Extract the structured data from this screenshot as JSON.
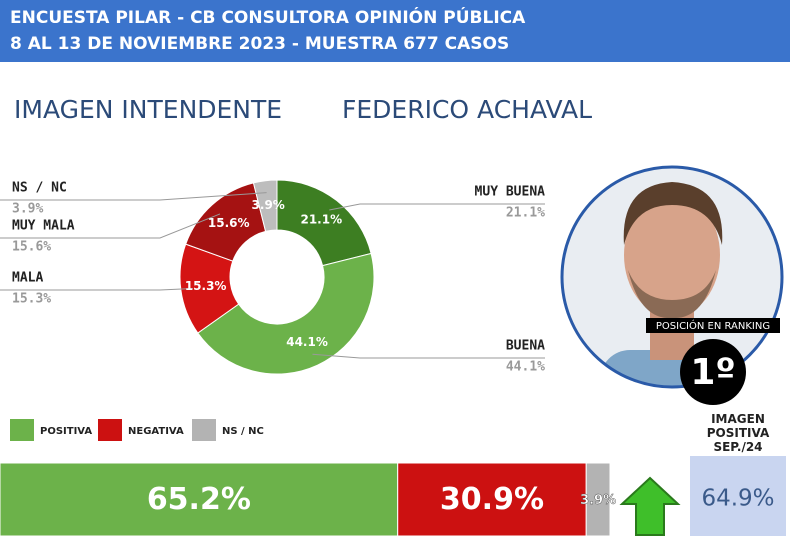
{
  "header": {
    "line1": "ENCUESTA PILAR - CB CONSULTORA OPINIÓN PÚBLICA",
    "line2": "8 AL 13 DE NOVIEMBRE 2023 - MUESTRA 677 CASOS"
  },
  "title": {
    "left": "IMAGEN INTENDENTE",
    "right": "FEDERICO ACHAVAL"
  },
  "chart_data": [
    {
      "type": "donut",
      "categories": [
        "MUY BUENA",
        "BUENA",
        "MALA",
        "MUY MALA",
        "NS / NC"
      ],
      "values": [
        21.1,
        44.1,
        15.3,
        15.6,
        3.9
      ],
      "value_labels": [
        "21.1%",
        "44.1%",
        "15.3%",
        "15.6%",
        "3.9%"
      ],
      "colors": [
        "#3d7e22",
        "#6cb24a",
        "#d41414",
        "#a51212",
        "#bdbdbd"
      ]
    },
    {
      "type": "stacked-bar",
      "series": [
        {
          "name": "POSITIVA",
          "color": "#6cb24a",
          "values": [
            65.2
          ],
          "value_labels": [
            "65.2%"
          ]
        },
        {
          "name": "NEGATIVA",
          "color": "#cc1111",
          "values": [
            30.9
          ],
          "value_labels": [
            "30.9%"
          ]
        },
        {
          "name": "NS / NC",
          "color": "#b3b3b3",
          "values": [
            3.9
          ],
          "value_labels": [
            "3.9%"
          ]
        }
      ]
    }
  ],
  "comparison": {
    "label": "IMAGEN POSITIVA SEP./24",
    "value": "64.9%"
  },
  "ranking": {
    "label": "POSICIÓN EN RANKING",
    "position": "1º"
  }
}
